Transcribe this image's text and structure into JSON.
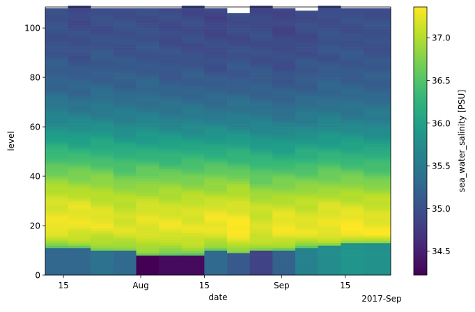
{
  "chart_data": {
    "type": "heatmap",
    "title": "",
    "xlabel": "date",
    "ylabel": "level",
    "colorbar_label": "sea_water_salinity [PSU]",
    "colormap": "viridis",
    "vmin": 34.22,
    "vmax": 37.36,
    "ylim": [
      0,
      108.5
    ],
    "xlim": [
      "2017-07-11",
      "2017-09-25"
    ],
    "x_ticks": [
      {
        "date": "2017-07-15",
        "label": "15"
      },
      {
        "date": "2017-08-01",
        "label": "Aug"
      },
      {
        "date": "2017-08-15",
        "label": "15"
      },
      {
        "date": "2017-09-01",
        "label": "Sep"
      },
      {
        "date": "2017-09-15",
        "label": "15"
      },
      {
        "date": "2017-09-23",
        "label": "2017-Sep"
      }
    ],
    "y_ticks": [
      0,
      20,
      40,
      60,
      80,
      100
    ],
    "colorbar_ticks": [
      34.5,
      35.0,
      35.5,
      36.0,
      36.5,
      37.0
    ],
    "profile_dates": [
      "2017-07-11",
      "2017-07-16",
      "2017-07-21",
      "2017-07-26",
      "2017-07-31",
      "2017-08-05",
      "2017-08-10",
      "2017-08-15",
      "2017-08-20",
      "2017-08-25",
      "2017-08-30",
      "2017-09-04",
      "2017-09-09",
      "2017-09-14",
      "2017-09-19"
    ],
    "profile_max_level": [
      108,
      109,
      108,
      108,
      108,
      108,
      109,
      108,
      106,
      109,
      108,
      107,
      109,
      108,
      108
    ],
    "profile_low_salinity": [
      35.25,
      35.25,
      35.4,
      35.3,
      34.22,
      34.3,
      34.3,
      35.3,
      35.1,
      34.85,
      35.2,
      35.6,
      35.75,
      35.85,
      35.8
    ],
    "profile_low_top": [
      11,
      11,
      9.5,
      9.5,
      8,
      8,
      8,
      10,
      8.5,
      9.5,
      10,
      11,
      11.5,
      12.5,
      12.5
    ],
    "profile_min_salinity": [
      34.95,
      34.9,
      34.95,
      34.95,
      34.95,
      34.9,
      34.9,
      34.85,
      34.9,
      34.9,
      34.85,
      34.9,
      34.95,
      34.95,
      34.95
    ],
    "profile_max_salinity": [
      37.3,
      37.3,
      37.25,
      37.2,
      37.25,
      37.25,
      37.25,
      37.3,
      37.35,
      37.2,
      37.3,
      37.25,
      37.3,
      37.35,
      37.3
    ],
    "profile_max_depth": [
      19,
      19,
      19,
      18,
      18,
      18,
      18,
      18,
      17,
      17,
      16,
      17,
      17,
      16,
      16
    ]
  }
}
